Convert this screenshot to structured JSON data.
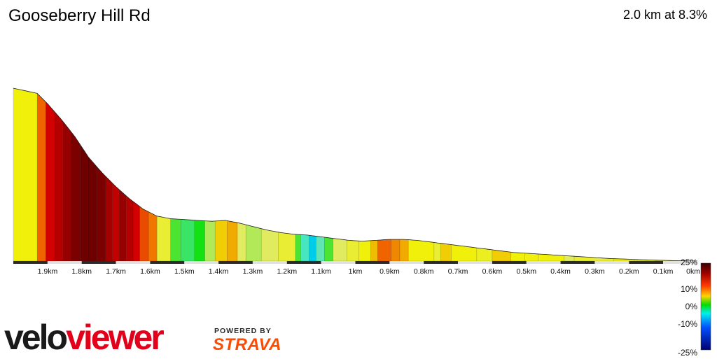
{
  "header": {
    "title": "Gooseberry Hill Rd",
    "summary": "2.0 km at 8.3%"
  },
  "branding": {
    "logo": "veloviewer",
    "powered_by": "POWERED BY",
    "strava": "STRAVA"
  },
  "colors": {
    "strava_orange": "#fc4c02",
    "logo_red": "#e3001b",
    "logo_black": "#1a1a1a"
  },
  "chart_data": {
    "type": "area",
    "x_direction": "right-to-left",
    "x_unit": "km",
    "xlim": [
      0,
      2.0
    ],
    "x_ticks": [
      {
        "value": 1.9,
        "label": "1.9km"
      },
      {
        "value": 1.8,
        "label": "1.8km"
      },
      {
        "value": 1.7,
        "label": "1.7km"
      },
      {
        "value": 1.6,
        "label": "1.6km"
      },
      {
        "value": 1.5,
        "label": "1.5km"
      },
      {
        "value": 1.4,
        "label": "1.4km"
      },
      {
        "value": 1.3,
        "label": "1.3km"
      },
      {
        "value": 1.2,
        "label": "1.2km"
      },
      {
        "value": 1.1,
        "label": "1.1km"
      },
      {
        "value": 1.0,
        "label": "1km"
      },
      {
        "value": 0.9,
        "label": "0.9km"
      },
      {
        "value": 0.8,
        "label": "0.8km"
      },
      {
        "value": 0.7,
        "label": "0.7km"
      },
      {
        "value": 0.6,
        "label": "0.6km"
      },
      {
        "value": 0.5,
        "label": "0.5km"
      },
      {
        "value": 0.4,
        "label": "0.4km"
      },
      {
        "value": 0.3,
        "label": "0.3km"
      },
      {
        "value": 0.2,
        "label": "0.2km"
      },
      {
        "value": 0.1,
        "label": "0.1km"
      },
      {
        "value": 0.0,
        "label": "0km"
      }
    ],
    "profile": [
      [
        2.0,
        100
      ],
      [
        1.93,
        97
      ],
      [
        1.9,
        91
      ],
      [
        1.86,
        82
      ],
      [
        1.82,
        72
      ],
      [
        1.78,
        60
      ],
      [
        1.74,
        51
      ],
      [
        1.7,
        43
      ],
      [
        1.66,
        36
      ],
      [
        1.62,
        30
      ],
      [
        1.58,
        26
      ],
      [
        1.54,
        24.5
      ],
      [
        1.5,
        24
      ],
      [
        1.46,
        23.5
      ],
      [
        1.42,
        23
      ],
      [
        1.38,
        23.5
      ],
      [
        1.34,
        22
      ],
      [
        1.3,
        20
      ],
      [
        1.26,
        18
      ],
      [
        1.22,
        16.5
      ],
      [
        1.18,
        15.5
      ],
      [
        1.14,
        15
      ],
      [
        1.1,
        14
      ],
      [
        1.06,
        13
      ],
      [
        1.02,
        12
      ],
      [
        0.98,
        11.5
      ],
      [
        0.94,
        12
      ],
      [
        0.9,
        12.5
      ],
      [
        0.86,
        12.5
      ],
      [
        0.82,
        12
      ],
      [
        0.78,
        11
      ],
      [
        0.74,
        10
      ],
      [
        0.7,
        9
      ],
      [
        0.66,
        8
      ],
      [
        0.62,
        7
      ],
      [
        0.58,
        6
      ],
      [
        0.54,
        5
      ],
      [
        0.5,
        4.5
      ],
      [
        0.46,
        4
      ],
      [
        0.42,
        3.5
      ],
      [
        0.38,
        3
      ],
      [
        0.34,
        2.5
      ],
      [
        0.3,
        2
      ],
      [
        0.26,
        1.5
      ],
      [
        0.22,
        1.2
      ],
      [
        0.18,
        0.9
      ],
      [
        0.14,
        0.6
      ],
      [
        0.1,
        0.4
      ],
      [
        0.06,
        0.2
      ],
      [
        0.02,
        0.05
      ],
      [
        0.0,
        0
      ]
    ],
    "segments": [
      {
        "from": 2.0,
        "to": 1.93,
        "gradient": 6
      },
      {
        "from": 1.93,
        "to": 1.905,
        "gradient": 10
      },
      {
        "from": 1.905,
        "to": 1.88,
        "gradient": 14
      },
      {
        "from": 1.88,
        "to": 1.855,
        "gradient": 16
      },
      {
        "from": 1.855,
        "to": 1.83,
        "gradient": 18
      },
      {
        "from": 1.83,
        "to": 1.805,
        "gradient": 20
      },
      {
        "from": 1.805,
        "to": 1.78,
        "gradient": 21
      },
      {
        "from": 1.78,
        "to": 1.755,
        "gradient": 21
      },
      {
        "from": 1.755,
        "to": 1.73,
        "gradient": 20
      },
      {
        "from": 1.73,
        "to": 1.71,
        "gradient": 17
      },
      {
        "from": 1.71,
        "to": 1.69,
        "gradient": 15
      },
      {
        "from": 1.69,
        "to": 1.67,
        "gradient": 18
      },
      {
        "from": 1.67,
        "to": 1.65,
        "gradient": 16
      },
      {
        "from": 1.65,
        "to": 1.63,
        "gradient": 14
      },
      {
        "from": 1.63,
        "to": 1.605,
        "gradient": 11
      },
      {
        "from": 1.605,
        "to": 1.58,
        "gradient": 9.5
      },
      {
        "from": 1.58,
        "to": 1.54,
        "gradient": 5
      },
      {
        "from": 1.54,
        "to": 1.51,
        "gradient": 1
      },
      {
        "from": 1.51,
        "to": 1.47,
        "gradient": -1
      },
      {
        "from": 1.47,
        "to": 1.44,
        "gradient": 0
      },
      {
        "from": 1.44,
        "to": 1.41,
        "gradient": 3
      },
      {
        "from": 1.41,
        "to": 1.375,
        "gradient": 7
      },
      {
        "from": 1.375,
        "to": 1.345,
        "gradient": 8
      },
      {
        "from": 1.345,
        "to": 1.32,
        "gradient": 4
      },
      {
        "from": 1.32,
        "to": 1.275,
        "gradient": 3
      },
      {
        "from": 1.275,
        "to": 1.225,
        "gradient": 4
      },
      {
        "from": 1.225,
        "to": 1.175,
        "gradient": 5
      },
      {
        "from": 1.175,
        "to": 1.16,
        "gradient": 1
      },
      {
        "from": 1.16,
        "to": 1.135,
        "gradient": -3
      },
      {
        "from": 1.135,
        "to": 1.115,
        "gradient": -7
      },
      {
        "from": 1.115,
        "to": 1.09,
        "gradient": -2
      },
      {
        "from": 1.09,
        "to": 1.065,
        "gradient": 1
      },
      {
        "from": 1.065,
        "to": 1.025,
        "gradient": 4
      },
      {
        "from": 1.025,
        "to": 0.99,
        "gradient": 5
      },
      {
        "from": 0.99,
        "to": 0.955,
        "gradient": 6
      },
      {
        "from": 0.955,
        "to": 0.935,
        "gradient": 7.5
      },
      {
        "from": 0.935,
        "to": 0.895,
        "gradient": 10
      },
      {
        "from": 0.895,
        "to": 0.87,
        "gradient": 9
      },
      {
        "from": 0.87,
        "to": 0.845,
        "gradient": 8
      },
      {
        "from": 0.845,
        "to": 0.77,
        "gradient": 6
      },
      {
        "from": 0.77,
        "to": 0.75,
        "gradient": 5
      },
      {
        "from": 0.75,
        "to": 0.72,
        "gradient": 7
      },
      {
        "from": 0.72,
        "to": 0.645,
        "gradient": 6
      },
      {
        "from": 0.645,
        "to": 0.6,
        "gradient": 5.5
      },
      {
        "from": 0.6,
        "to": 0.545,
        "gradient": 7
      },
      {
        "from": 0.545,
        "to": 0.505,
        "gradient": 6
      },
      {
        "from": 0.505,
        "to": 0.465,
        "gradient": 6
      },
      {
        "from": 0.465,
        "to": 0.39,
        "gradient": 6
      },
      {
        "from": 0.39,
        "to": 0.36,
        "gradient": 4
      },
      {
        "from": 0.36,
        "to": 0.245,
        "gradient": 5
      },
      {
        "from": 0.245,
        "to": 0.185,
        "gradient": 6
      },
      {
        "from": 0.185,
        "to": 0.12,
        "gradient": 5.5
      },
      {
        "from": 0.12,
        "to": 0.05,
        "gradient": 5
      },
      {
        "from": 0.05,
        "to": 0.0,
        "gradient": 4
      }
    ],
    "gradient_scale": {
      "ticks": [
        {
          "value": 25,
          "label": "25%"
        },
        {
          "value": 10,
          "label": "10%"
        },
        {
          "value": 0,
          "label": "0%"
        },
        {
          "value": -10,
          "label": "-10%"
        },
        {
          "value": -25,
          "label": "-25%"
        }
      ]
    }
  }
}
